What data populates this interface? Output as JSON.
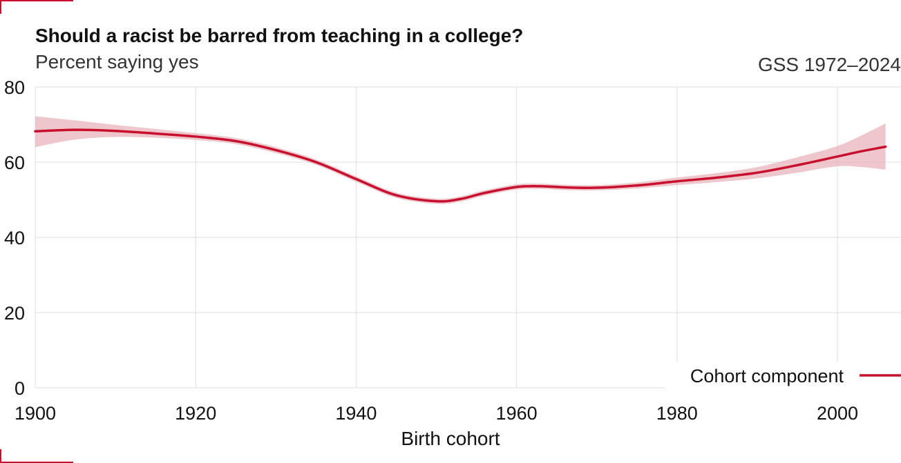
{
  "header": {
    "title": "Should a racist be barred from teaching in a college?",
    "subtitle": "Percent saying yes",
    "source": "GSS 1972–2024"
  },
  "colors": {
    "accent": "#c8102e",
    "band": "#e8b4bc",
    "grid": "#e3e3e3"
  },
  "chart_data": {
    "type": "line",
    "title": "Should a racist be barred from teaching in a college?",
    "subtitle": "Percent saying yes",
    "xlabel": "Birth cohort",
    "ylabel": "",
    "xlim": [
      1900,
      2007
    ],
    "ylim": [
      0,
      80
    ],
    "x_ticks": [
      1900,
      1920,
      1940,
      1960,
      1980,
      2000
    ],
    "y_ticks": [
      0,
      20,
      40,
      60,
      80
    ],
    "grid": true,
    "legend_position": "bottom-right",
    "series": [
      {
        "name": "Cohort component",
        "color": "#c8102e",
        "x": [
          1900,
          1905,
          1910,
          1915,
          1920,
          1925,
          1930,
          1935,
          1940,
          1945,
          1950,
          1953,
          1956,
          1960,
          1963,
          1966,
          1970,
          1975,
          1980,
          1985,
          1990,
          1995,
          2000,
          2003,
          2006
        ],
        "y": [
          68.2,
          68.6,
          68.3,
          67.6,
          66.8,
          65.6,
          63.2,
          60.0,
          55.5,
          51.2,
          49.6,
          50.2,
          51.8,
          53.4,
          53.6,
          53.3,
          53.2,
          53.8,
          54.9,
          55.9,
          57.2,
          59.2,
          61.5,
          62.9,
          64.1
        ],
        "lower": [
          64.0,
          66.0,
          66.7,
          66.5,
          65.9,
          64.8,
          62.4,
          59.3,
          54.8,
          50.5,
          48.9,
          49.5,
          51.1,
          52.7,
          52.9,
          52.6,
          52.5,
          53.0,
          53.9,
          54.7,
          55.7,
          57.2,
          58.9,
          58.7,
          58.0
        ],
        "upper": [
          72.2,
          71.1,
          69.9,
          68.8,
          67.7,
          66.4,
          64.0,
          60.7,
          56.2,
          51.9,
          50.3,
          50.9,
          52.5,
          54.1,
          54.3,
          54.0,
          53.9,
          54.6,
          55.9,
          57.1,
          58.7,
          61.3,
          64.3,
          67.1,
          70.3
        ]
      }
    ]
  }
}
